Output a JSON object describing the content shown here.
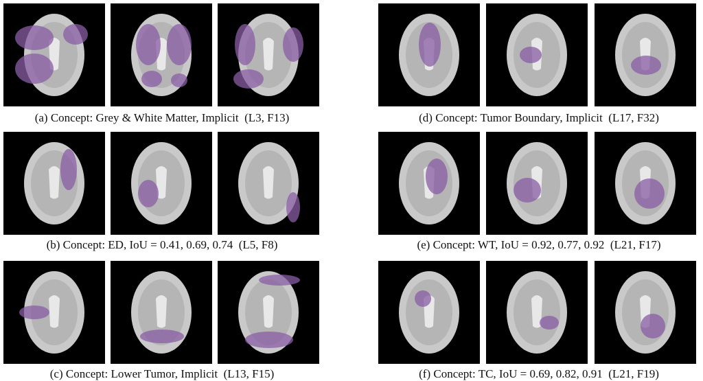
{
  "panels": [
    {
      "caption": "(a) Concept: Grey & White Matter, Implicit  (L3, F13)"
    },
    {
      "caption": "(b) Concept: ED, IoU = 0.41, 0.69, 0.74  (L5, F8)"
    },
    {
      "caption": "(c) Concept: Lower Tumor, Implicit  (L13, F15)"
    },
    {
      "caption": "(d) Concept: Tumor Boundary, Implicit  (L17, F32)"
    },
    {
      "caption": "(e) Concept: WT, IoU = 0.92, 0.77, 0.92  (L21, F17)"
    },
    {
      "caption": "(f) Concept: TC, IoU = 0.69, 0.82, 0.91  (L21, F19)"
    }
  ]
}
